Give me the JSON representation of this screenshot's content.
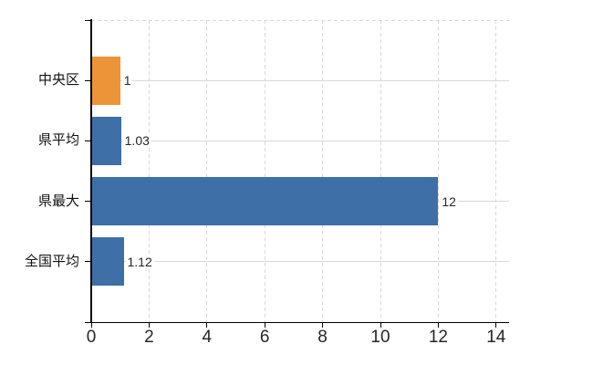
{
  "chart_data": {
    "type": "bar",
    "orientation": "horizontal",
    "title": "",
    "categories": [
      "中央区",
      "県平均",
      "県最大",
      "全国平均"
    ],
    "values": [
      1,
      1.03,
      12,
      1.12
    ],
    "value_labels": [
      "1",
      "1.03",
      "12",
      "1.12"
    ],
    "bar_colors": [
      "#ED9438",
      "#3E6FA7",
      "#3E6FA7",
      "#3E6FA7"
    ],
    "x_ticks": [
      "0",
      "2",
      "4",
      "6",
      "8",
      "10",
      "12",
      "14"
    ],
    "x_tick_values": [
      0,
      2,
      4,
      6,
      8,
      10,
      12,
      14
    ],
    "xlim": [
      0,
      14.45
    ],
    "grid": {
      "vertical": "dashed",
      "horizontal": "solid",
      "color": "#d9d9d9"
    },
    "axis_color": "#000000",
    "text_color": "#262626",
    "legend": "none",
    "background": "#ffffff"
  }
}
